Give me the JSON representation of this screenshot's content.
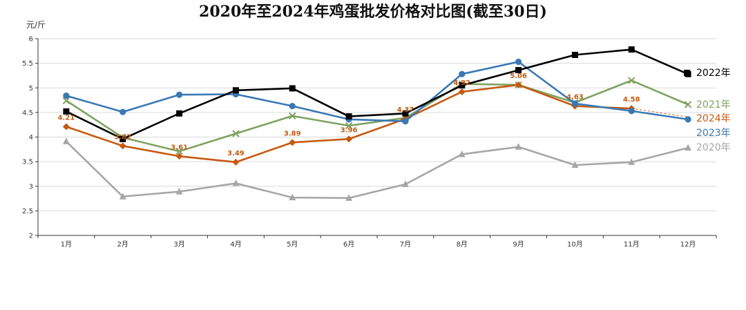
{
  "chart_data": {
    "type": "line",
    "title": "2020年至2024年鸡蛋批发价格对比图(截至30日)",
    "ylabel": "元/斤",
    "xlabel": "",
    "categories": [
      "1月",
      "2月",
      "3月",
      "4月",
      "5月",
      "6月",
      "7月",
      "8月",
      "9月",
      "10月",
      "11月",
      "12月"
    ],
    "ylim": [
      2,
      6
    ],
    "yticks": [
      "2",
      "2.5",
      "3",
      "3.5",
      "4",
      "4.5",
      "5",
      "5.5",
      "6"
    ],
    "grid": true,
    "legend_placement": "right, at line ends",
    "series": [
      {
        "name": "2022年",
        "color": "#000000",
        "marker": "square",
        "values": [
          4.52,
          3.96,
          4.48,
          4.95,
          4.99,
          4.42,
          4.48,
          5.05,
          5.36,
          5.67,
          5.78,
          5.28
        ]
      },
      {
        "name": "2021年",
        "color": "#7ea25f",
        "marker": "x",
        "values": [
          4.74,
          3.99,
          3.71,
          4.07,
          4.43,
          4.23,
          4.39,
          5.08,
          5.06,
          4.7,
          5.15,
          4.66
        ]
      },
      {
        "name": "2024年",
        "color": "#c55a11",
        "marker": "diamond",
        "values": [
          4.21,
          3.82,
          3.61,
          3.49,
          3.89,
          3.96,
          4.37,
          4.92,
          5.06,
          4.63,
          4.58,
          null
        ],
        "labels": [
          "4.21",
          "3.82",
          "3.61",
          "3.49",
          "3.89",
          "3.96",
          "4.37",
          "4.92",
          "5.06",
          "4.63",
          "4.58",
          ""
        ]
      },
      {
        "name": "2023年",
        "color": "#3a78b5",
        "marker": "circle",
        "values": [
          4.84,
          4.51,
          4.86,
          4.87,
          4.63,
          4.36,
          4.32,
          5.28,
          5.53,
          4.68,
          4.53,
          4.36
        ]
      },
      {
        "name": "2020年",
        "color": "#a6a6a6",
        "marker": "triangle",
        "values": [
          3.91,
          2.79,
          2.89,
          3.06,
          2.77,
          2.76,
          3.04,
          3.65,
          3.8,
          3.43,
          3.49,
          3.78
        ]
      }
    ]
  }
}
